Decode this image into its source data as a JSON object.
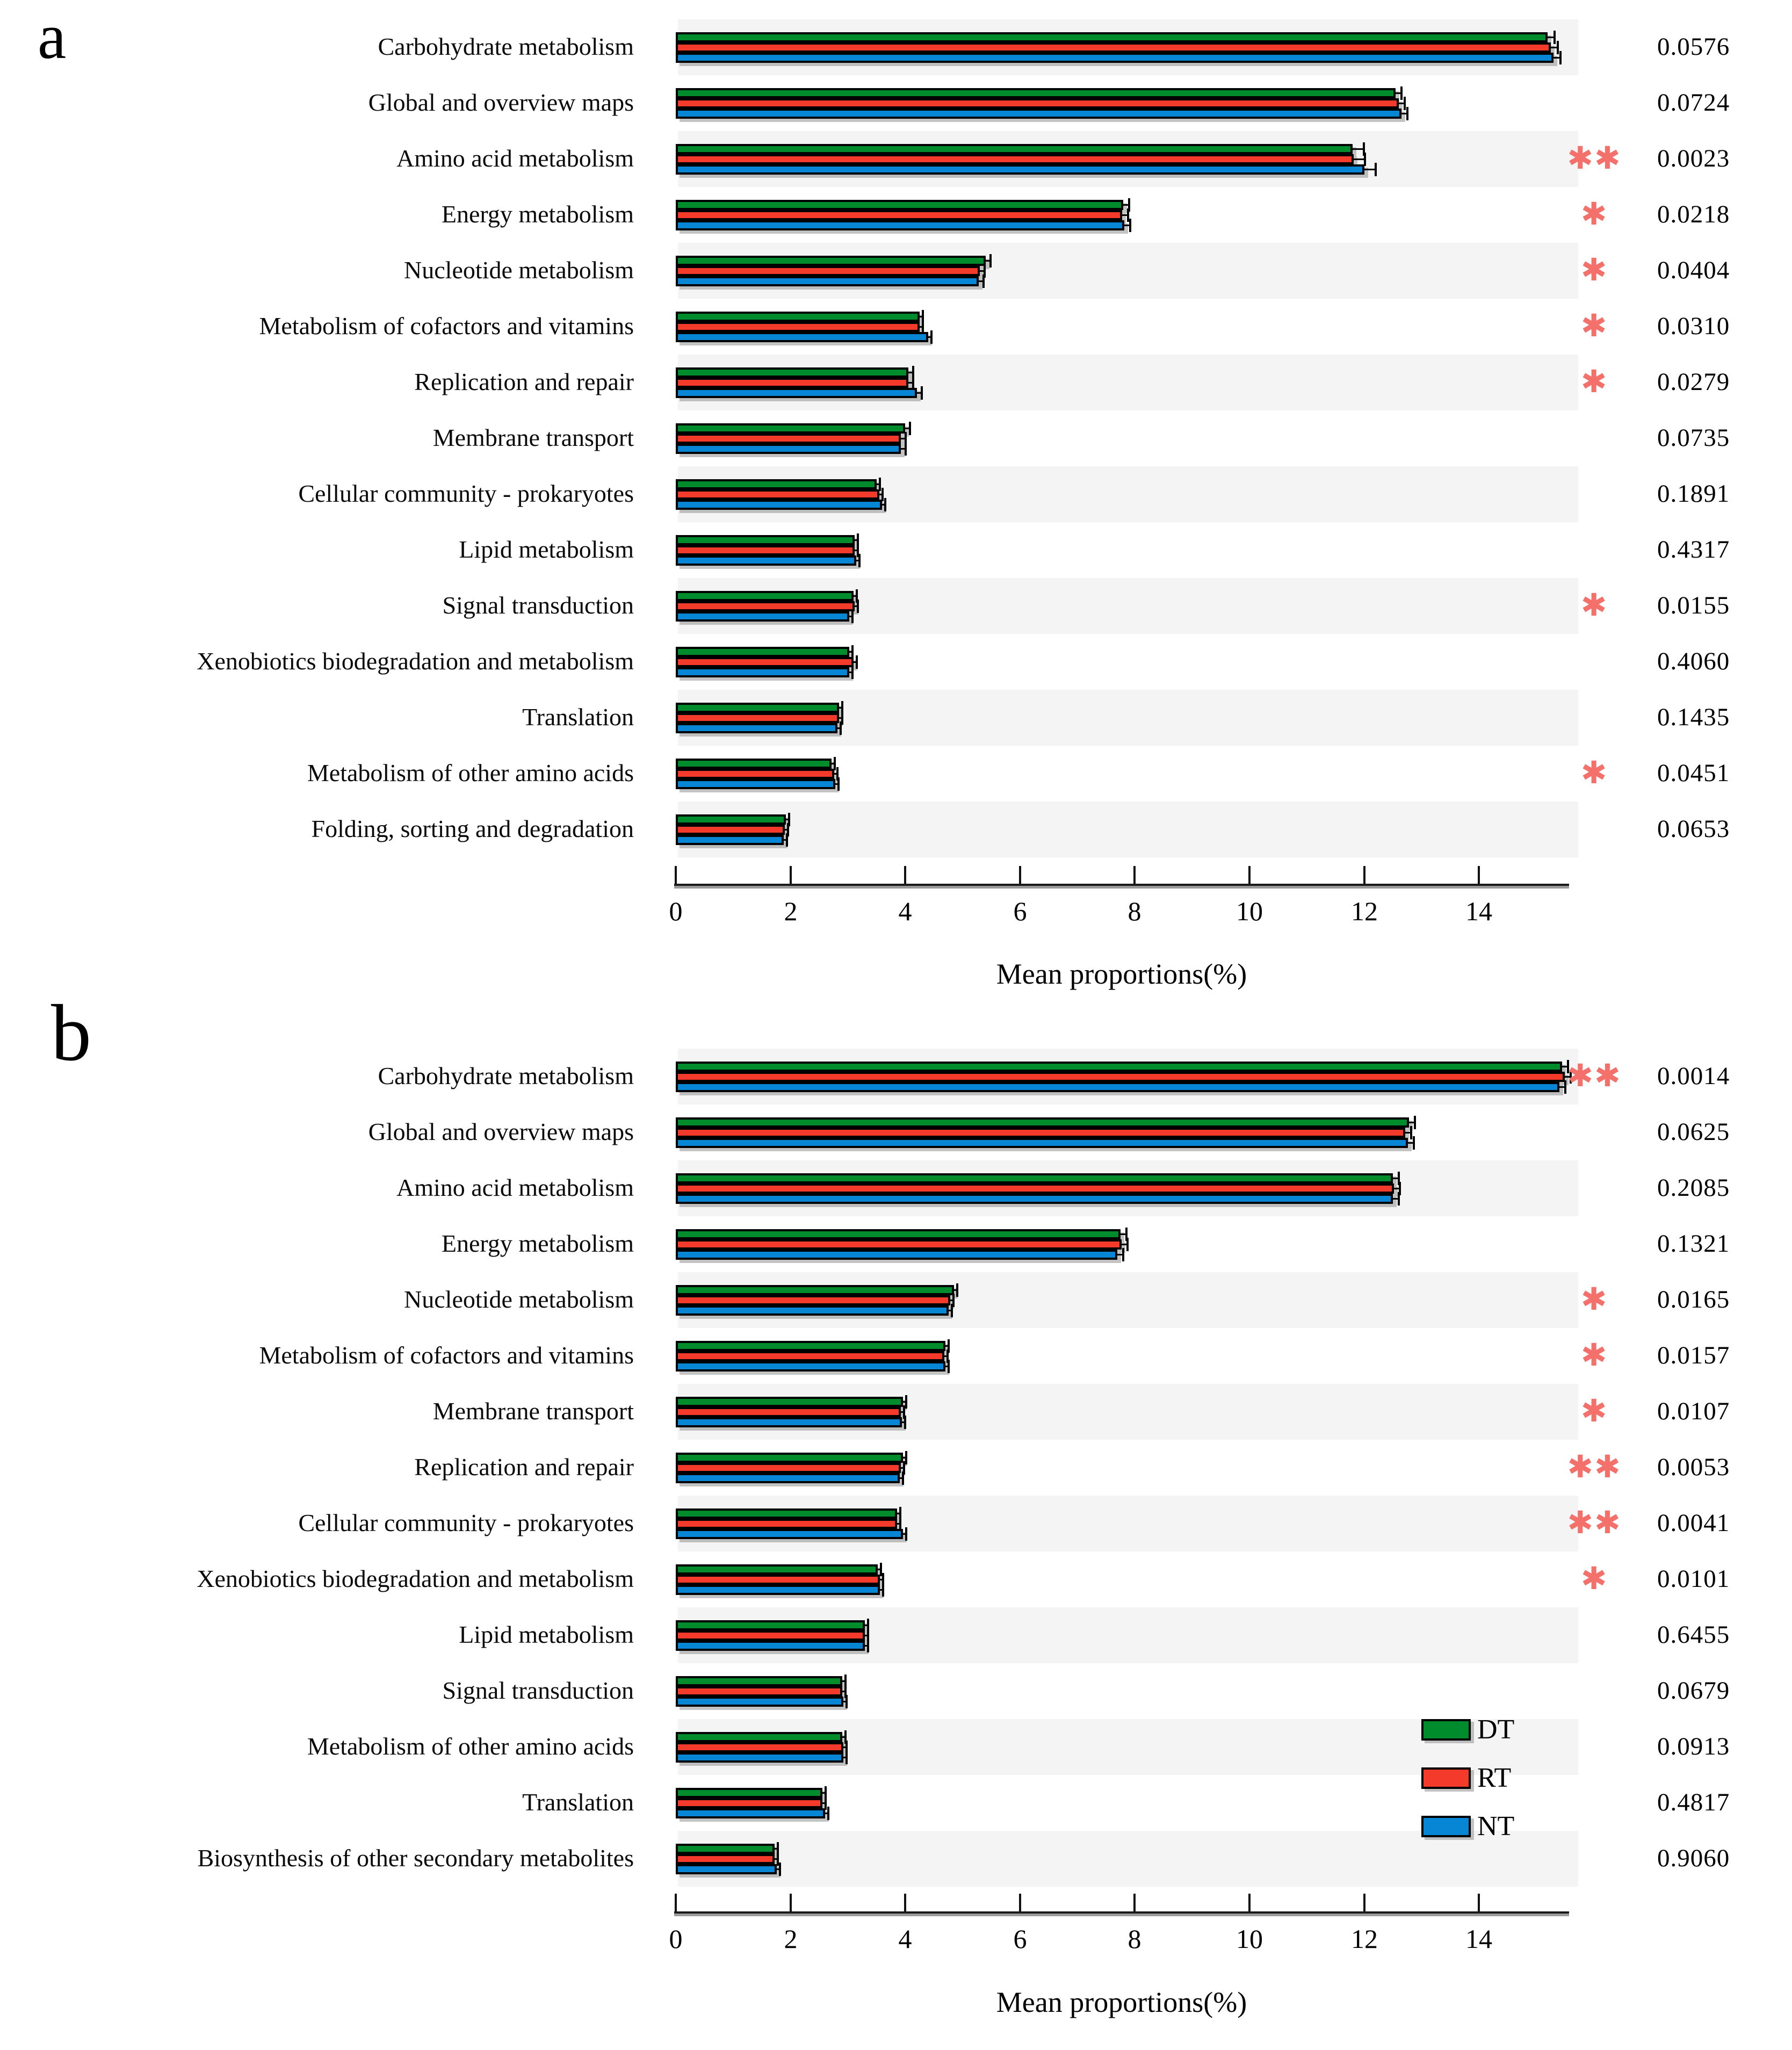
{
  "figure_type": "grouped horizontal bar charts with p-values (KEGG pathway mean proportions)",
  "panel_letters": [
    "a",
    "b"
  ],
  "legend": {
    "position": "inside bottom-right of panel b",
    "items": [
      {
        "label": "DT",
        "color": "#008c2d"
      },
      {
        "label": "RT",
        "color": "#f33a2b"
      },
      {
        "label": "NT",
        "color": "#0886d6"
      }
    ]
  },
  "style": {
    "bar_border": "#000000",
    "stripe_color": "#f5f4f5",
    "shadow_color": "#919191",
    "significance_color": "#f4706b",
    "axis_color": "#1a1a1a"
  },
  "chart_data": [
    {
      "type": "bar",
      "orientation": "horizontal",
      "panel": "a",
      "xlabel": "Mean proportions(%)",
      "xlim": [
        0,
        15.55
      ],
      "x_ticks": [
        0,
        2,
        4,
        6,
        8,
        10,
        12,
        14
      ],
      "grid": false,
      "series_names": [
        "DT",
        "RT",
        "NT"
      ],
      "categories": [
        "Carbohydrate metabolism",
        "Global and overview maps",
        "Amino acid metabolism",
        "Energy metabolism",
        "Nucleotide metabolism",
        "Metabolism of cofactors and vitamins",
        "Replication and repair",
        "Membrane transport",
        "Cellular community - prokaryotes",
        "Lipid metabolism",
        "Signal transduction",
        "Xenobiotics biodegradation and metabolism",
        "Translation",
        "Metabolism of other amino acids",
        "Folding, sorting and degradation"
      ],
      "series": [
        {
          "name": "DT",
          "values": [
            15.2,
            12.55,
            11.8,
            7.8,
            5.4,
            4.25,
            4.05,
            4.0,
            3.5,
            3.12,
            3.1,
            3.02,
            2.85,
            2.72,
            1.92
          ]
        },
        {
          "name": "RT",
          "values": [
            15.25,
            12.6,
            11.82,
            7.78,
            5.3,
            4.25,
            4.05,
            3.92,
            3.55,
            3.12,
            3.12,
            3.1,
            2.85,
            2.76,
            1.9
          ]
        },
        {
          "name": "NT",
          "values": [
            15.3,
            12.65,
            12.0,
            7.82,
            5.28,
            4.4,
            4.2,
            3.92,
            3.6,
            3.15,
            3.02,
            3.02,
            2.82,
            2.78,
            1.88
          ]
        }
      ],
      "errors": [
        0.12,
        0.1,
        0.2,
        0.1,
        0.08,
        0.06,
        0.08,
        0.08,
        0.06,
        0.05,
        0.05,
        0.05,
        0.05,
        0.05,
        0.04
      ],
      "significance": [
        "",
        "",
        "**",
        "*",
        "*",
        "*",
        "*",
        "",
        "",
        "",
        "*",
        "",
        "",
        "*",
        ""
      ],
      "p_values": [
        "0.0576",
        "0.0724",
        "0.0023",
        "0.0218",
        "0.0404",
        "0.0310",
        "0.0279",
        "0.0735",
        "0.1891",
        "0.4317",
        "0.0155",
        "0.4060",
        "0.1435",
        "0.0451",
        "0.0653"
      ]
    },
    {
      "type": "bar",
      "orientation": "horizontal",
      "panel": "b",
      "xlabel": "Mean proportions(%)",
      "xlim": [
        0,
        15.55
      ],
      "x_ticks": [
        0,
        2,
        4,
        6,
        8,
        10,
        12,
        14
      ],
      "grid": false,
      "series_names": [
        "DT",
        "RT",
        "NT"
      ],
      "categories": [
        "Carbohydrate metabolism",
        "Global and overview maps",
        "Amino acid metabolism",
        "Energy metabolism",
        "Nucleotide metabolism",
        "Metabolism of cofactors and vitamins",
        "Membrane transport",
        "Replication and repair",
        "Cellular community - prokaryotes",
        "Xenobiotics biodegradation and metabolism",
        "Lipid metabolism",
        "Signal transduction",
        "Metabolism of other amino acids",
        "Translation",
        "Biosynthesis of other secondary metabolites"
      ],
      "series": [
        {
          "name": "DT",
          "values": [
            15.45,
            12.78,
            12.5,
            7.75,
            4.85,
            4.7,
            3.96,
            3.96,
            3.86,
            3.52,
            3.3,
            2.9,
            2.9,
            2.56,
            1.72
          ]
        },
        {
          "name": "RT",
          "values": [
            15.5,
            12.72,
            12.52,
            7.77,
            4.78,
            4.68,
            3.92,
            3.92,
            3.86,
            3.56,
            3.3,
            2.9,
            2.92,
            2.56,
            1.72
          ]
        },
        {
          "name": "NT",
          "values": [
            15.4,
            12.76,
            12.5,
            7.7,
            4.76,
            4.7,
            3.94,
            3.9,
            3.96,
            3.56,
            3.3,
            2.92,
            2.92,
            2.6,
            1.76
          ]
        }
      ],
      "errors": [
        0.1,
        0.1,
        0.1,
        0.1,
        0.06,
        0.05,
        0.06,
        0.05,
        0.06,
        0.06,
        0.05,
        0.05,
        0.05,
        0.05,
        0.04
      ],
      "significance": [
        "**",
        "",
        "",
        "",
        "*",
        "*",
        "*",
        "**",
        "**",
        "*",
        "",
        "",
        "",
        "",
        ""
      ],
      "p_values": [
        "0.0014",
        "0.0625",
        "0.2085",
        "0.1321",
        "0.0165",
        "0.0157",
        "0.0107",
        "0.0053",
        "0.0041",
        "0.0101",
        "0.6455",
        "0.0679",
        "0.0913",
        "0.4817",
        "0.9060"
      ]
    }
  ]
}
